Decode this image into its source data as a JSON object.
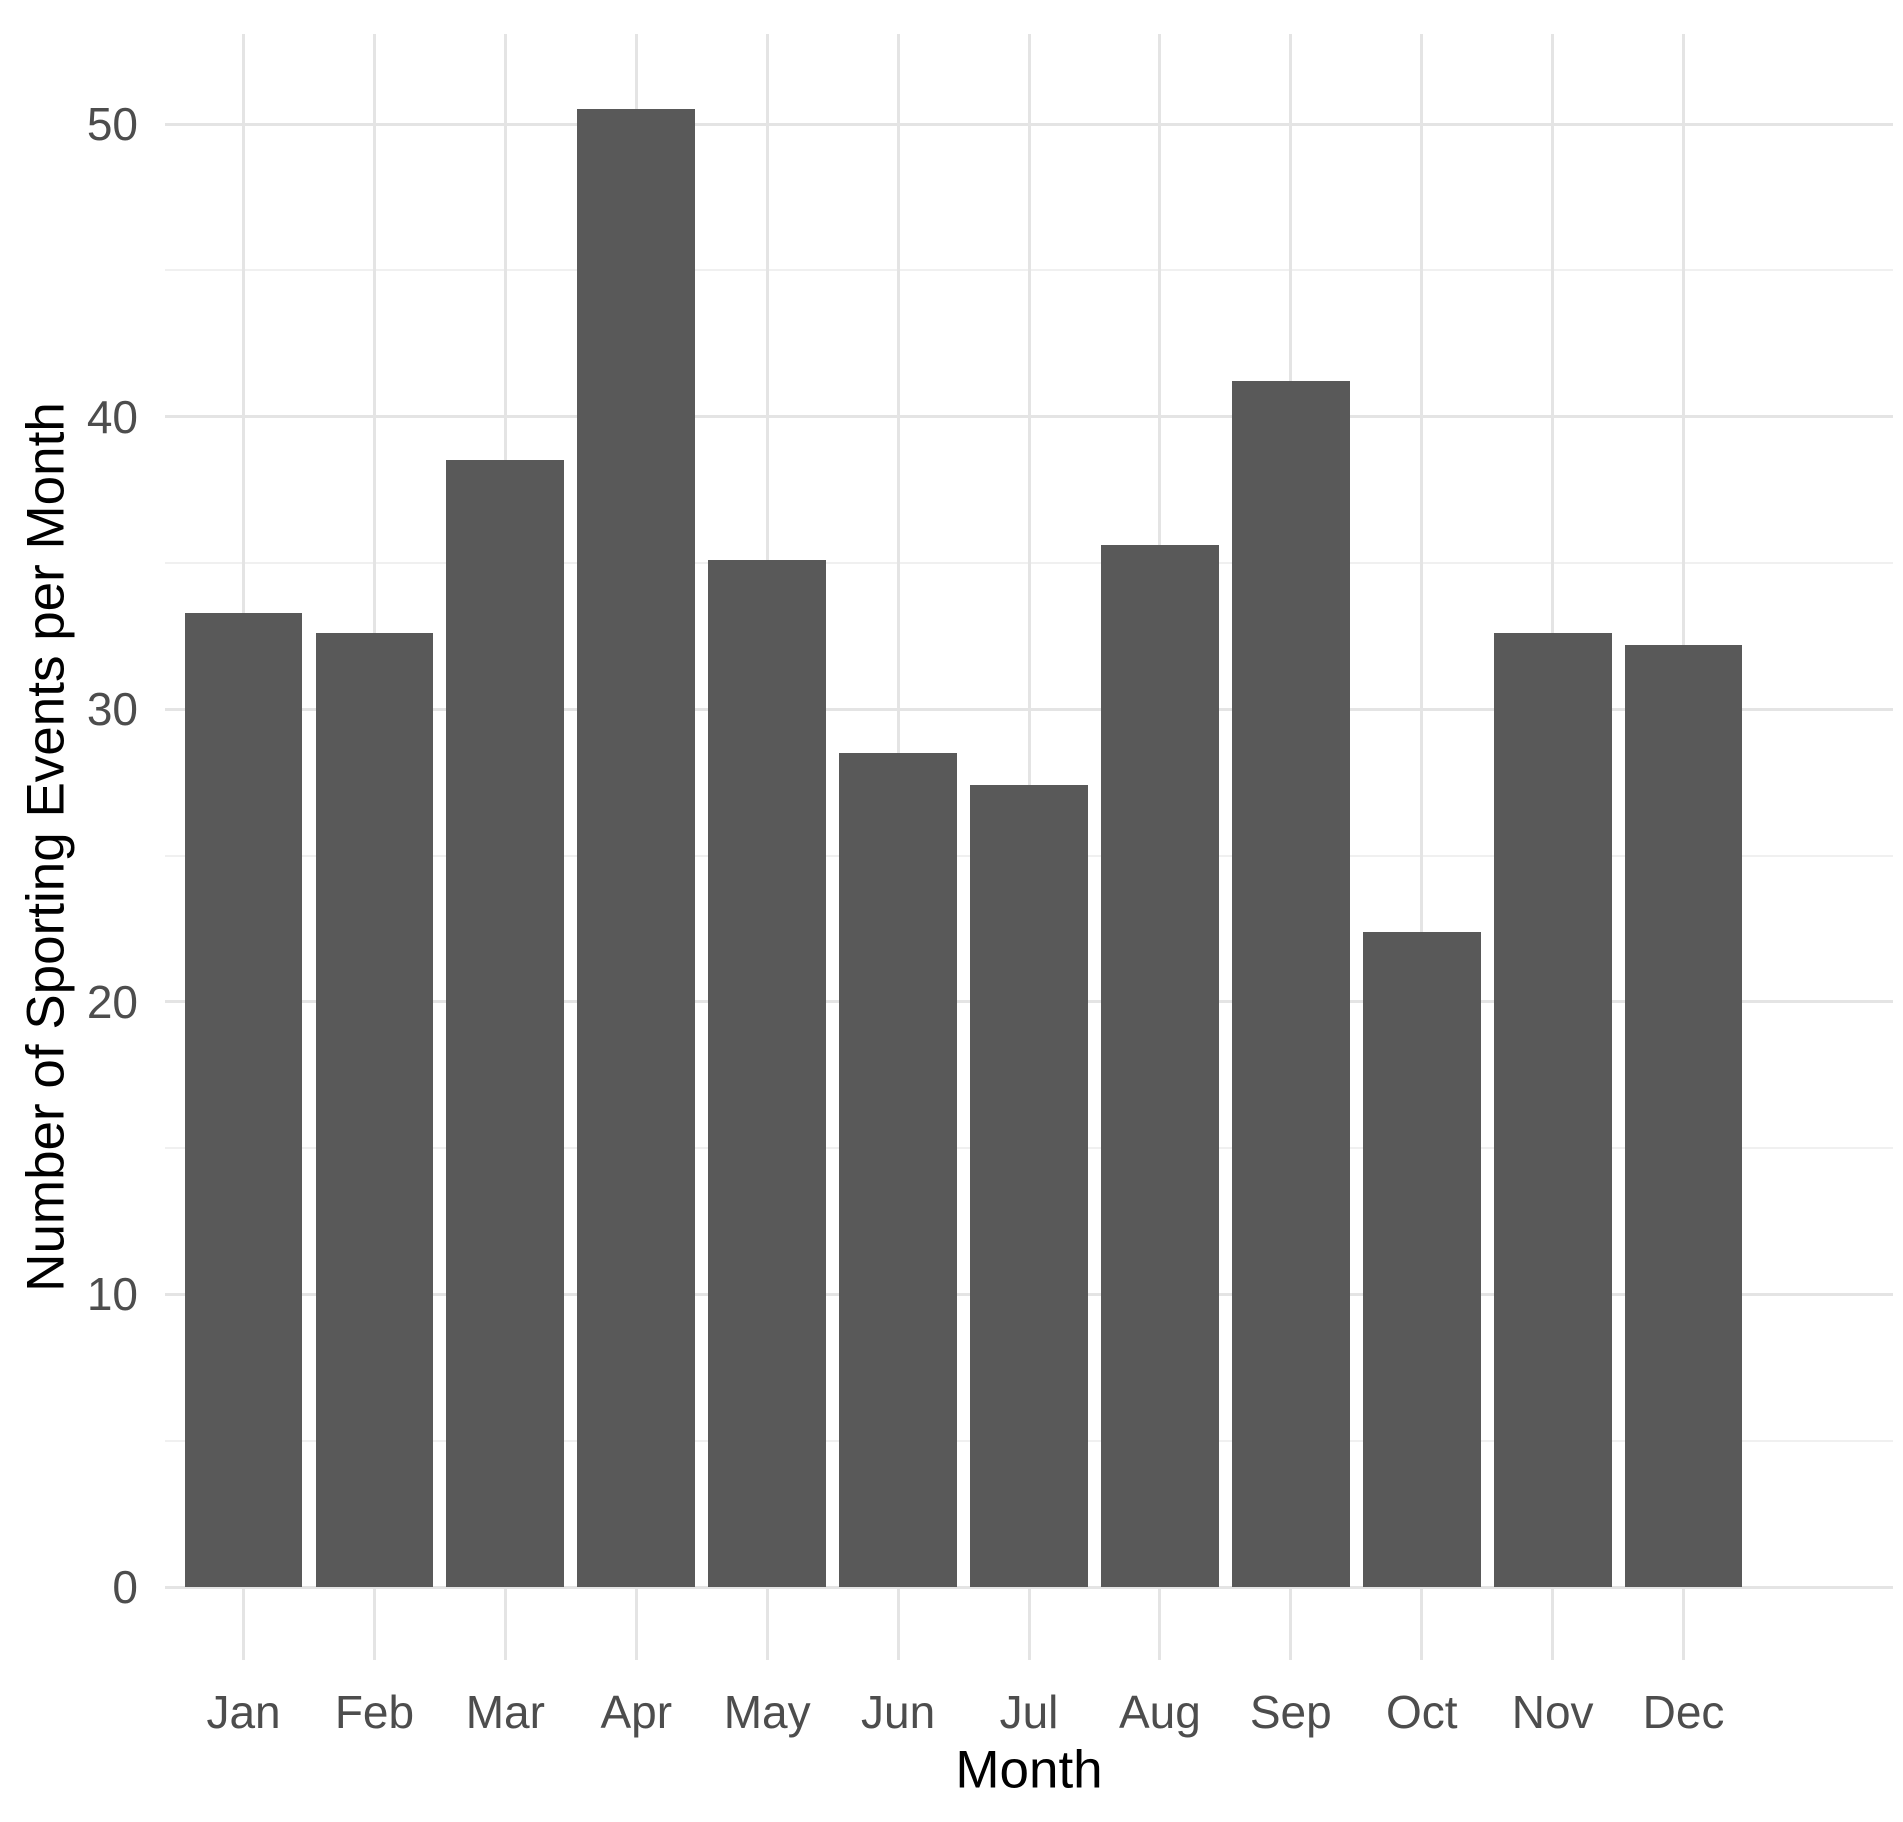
{
  "chart_data": {
    "type": "bar",
    "xlabel": "Month",
    "ylabel": "Number of Sporting Events per Month",
    "categories": [
      "Jan",
      "Feb",
      "Mar",
      "Apr",
      "May",
      "Jun",
      "Jul",
      "Aug",
      "Sep",
      "Oct",
      "Nov",
      "Dec"
    ],
    "values": [
      33.3,
      32.6,
      38.5,
      50.5,
      35.1,
      28.5,
      27.4,
      35.6,
      41.2,
      22.4,
      32.6,
      32.2
    ],
    "ylim": [
      0,
      53
    ],
    "y_major_ticks": [
      0,
      10,
      20,
      30,
      40,
      50
    ],
    "y_minor_ticks": [
      5,
      15,
      25,
      35,
      45
    ],
    "grid": true,
    "legend": "none",
    "bar_color": "#595959",
    "grid_major_color": "#e4e4e4",
    "grid_minor_color": "#f0f0f0",
    "axis_text_color": "#4d4d4d",
    "axis_title_color": "#000000",
    "background_color": "#ffffff"
  }
}
